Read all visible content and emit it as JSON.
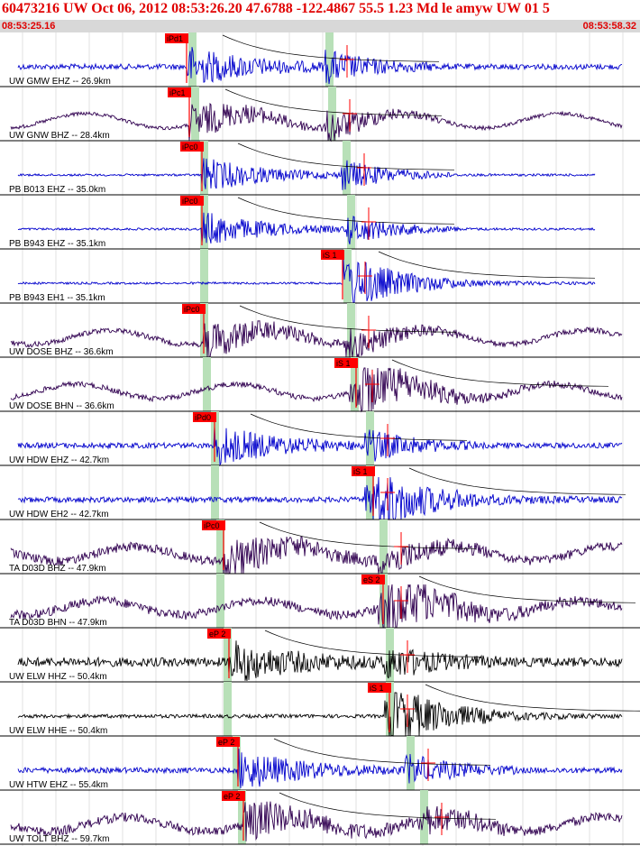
{
  "header": {
    "title": "60473216 UW Oct 06, 2012 08:53:26.20    47.6788 -122.4867 55.5 1.23 Md le amyw UW 01    5",
    "time_start": "08:53:25.16",
    "time_end": "08:53:58.32"
  },
  "colors": {
    "blue_trace": "#0000cc",
    "purple_trace": "#300050",
    "black_trace": "#000000",
    "pick_box": "#ff0000",
    "pick_text": "#000000",
    "window_band": "#b8e0b8",
    "grid": "#cfcfcf",
    "separator": "#000000",
    "header_text": "#e00000",
    "time_bar_bg": "#d8d8d8"
  },
  "traces": [
    {
      "label": "UW GMW EHZ -- 26.9km",
      "color": "blue",
      "pick": "iPd1",
      "pick2": null,
      "pickX": 207,
      "bandX": [
        213,
        365
      ],
      "amp": "med",
      "wave": "noise"
    },
    {
      "label": "UW GNW BHZ -- 28.4km",
      "color": "purple",
      "pick": "iPc1",
      "pick2": null,
      "pickX": 210,
      "bandX": [
        216,
        368
      ],
      "amp": "low",
      "wave": "slow"
    },
    {
      "label": "PB B013 EHZ -- 35.0km",
      "color": "blue",
      "pick": "iPc0",
      "pick2": null,
      "pickX": 224,
      "bandX": [
        226,
        384
      ],
      "amp": "flat",
      "wave": "noise"
    },
    {
      "label": "PB B943 EHZ -- 35.1km",
      "color": "blue",
      "pick": "iPc0",
      "pick2": null,
      "pickX": 224,
      "bandX": [
        226,
        389
      ],
      "amp": "flat",
      "wave": "noise"
    },
    {
      "label": "PB B943 EH1 -- 35.1km",
      "color": "blue",
      "pick": "iS 1",
      "pick2": null,
      "pickX": 380,
      "bandX": [
        226,
        385
      ],
      "amp": "flat",
      "wave": "noise"
    },
    {
      "label": "UW DOSE BHZ -- 36.6km",
      "color": "purple",
      "pick": "iPc0",
      "pick2": null,
      "pickX": 226,
      "bandX": [
        226,
        389
      ],
      "amp": "med",
      "wave": "slow"
    },
    {
      "label": "UW DOSE BHN -- 36.6km",
      "color": "purple",
      "pick": "iS 1",
      "pick2": null,
      "pickX": 395,
      "bandX": [
        229,
        393
      ],
      "amp": "med",
      "wave": "slow"
    },
    {
      "label": "UW HDW EHZ -- 42.7km",
      "color": "blue",
      "pick": "iPd0",
      "pick2": null,
      "pickX": 238,
      "bandX": [
        238,
        410
      ],
      "amp": "med",
      "wave": "noise"
    },
    {
      "label": "UW HDW EH2 -- 42.7km",
      "color": "blue",
      "pick": "iS 1",
      "pick2": null,
      "pickX": 414,
      "bandX": [
        238,
        410
      ],
      "amp": "med",
      "wave": "noise"
    },
    {
      "label": "TA D03D BHZ -- 47.9km",
      "color": "purple",
      "pick": "iPc0",
      "pick2": null,
      "pickX": 248,
      "bandX": [
        244,
        425
      ],
      "amp": "high",
      "wave": "slow"
    },
    {
      "label": "TA D03D BHN -- 47.9km",
      "color": "purple",
      "pick": "eS 2",
      "pick2": null,
      "pickX": 425,
      "bandX": [
        244,
        425
      ],
      "amp": "high",
      "wave": "slow"
    },
    {
      "label": "UW ELW HHZ -- 50.4km",
      "color": "black",
      "pick": "eP 2",
      "pick2": null,
      "pickX": 254,
      "bandX": [
        252,
        432
      ],
      "amp": "high",
      "wave": "noise"
    },
    {
      "label": "UW ELW HHE -- 50.4km",
      "color": "black",
      "pick": "iS 1",
      "pick2": null,
      "pickX": 432,
      "bandX": [
        252,
        432
      ],
      "amp": "low",
      "wave": "noise"
    },
    {
      "label": "UW HTW EHZ -- 55.4km",
      "color": "blue",
      "pick": "eP 2",
      "pick2": null,
      "pickX": 264,
      "bandX": [
        262,
        455
      ],
      "amp": "med",
      "wave": "noise"
    },
    {
      "label": "UW TOLT BHZ -- 59.7km",
      "color": "purple",
      "pick": "eP 2",
      "pick2": null,
      "pickX": 270,
      "bandX": [
        268,
        470
      ],
      "amp": "high",
      "wave": "slow"
    }
  ]
}
